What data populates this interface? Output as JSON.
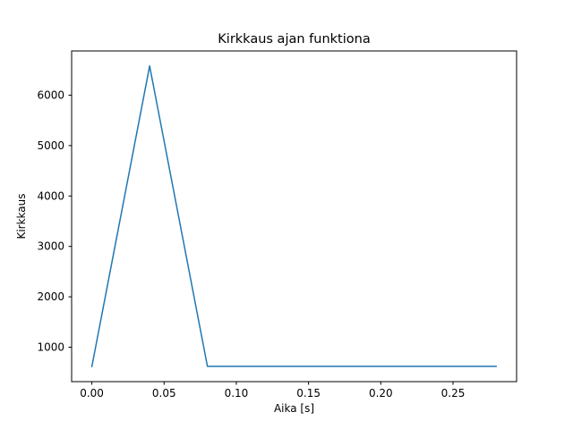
{
  "chart_data": {
    "type": "line",
    "title": "Kirkkaus ajan funktiona",
    "xlabel": "Aika [s]",
    "ylabel": "Kirkkaus",
    "x": [
      0.0,
      0.04,
      0.08,
      0.12,
      0.16,
      0.2,
      0.24,
      0.28
    ],
    "y": [
      615,
      6580,
      620,
      620,
      620,
      620,
      620,
      620
    ],
    "series": [
      {
        "name": "Kirkkaus",
        "x": [
          0.0,
          0.04,
          0.08,
          0.12,
          0.16,
          0.2,
          0.24,
          0.28
        ],
        "values": [
          615,
          6580,
          620,
          620,
          620,
          620,
          620,
          620
        ]
      }
    ],
    "xlim": [
      -0.014,
      0.294
    ],
    "ylim": [
      317,
      6878
    ],
    "xticks": [
      0.0,
      0.05,
      0.1,
      0.15,
      0.2,
      0.25
    ],
    "xtick_labels": [
      "0.00",
      "0.05",
      "0.10",
      "0.15",
      "0.20",
      "0.25"
    ],
    "yticks": [
      1000,
      2000,
      3000,
      4000,
      5000,
      6000
    ],
    "ytick_labels": [
      "1000",
      "2000",
      "3000",
      "4000",
      "5000",
      "6000"
    ],
    "line_color": "#1f77b4",
    "axis_color": "#000000",
    "background_color": "#ffffff",
    "grid": false,
    "legend": null
  }
}
